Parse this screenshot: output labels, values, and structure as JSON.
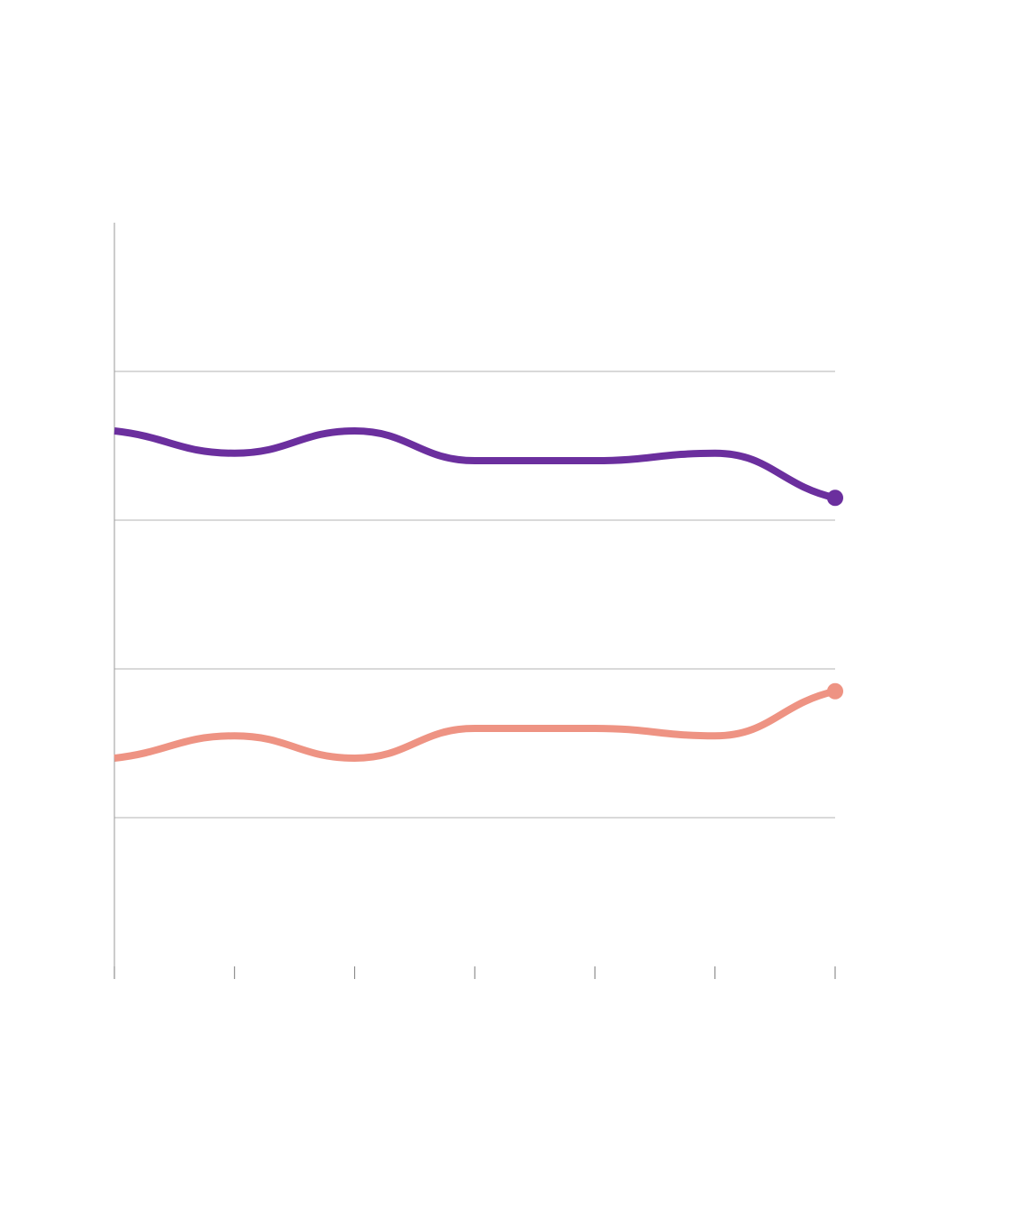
{
  "chart_data": {
    "type": "line",
    "title": "",
    "xlabel": "",
    "ylabel": "",
    "x": [
      0,
      1,
      2,
      3,
      4,
      5,
      6
    ],
    "ylim": [
      0,
      100
    ],
    "grid": true,
    "series": [
      {
        "color": "#6b2f9e",
        "values": [
          72,
          69,
          72,
          68,
          68,
          69,
          63
        ]
      },
      {
        "color": "#ee9383",
        "values": [
          28,
          31,
          28,
          32,
          32,
          31,
          37
        ]
      }
    ]
  }
}
